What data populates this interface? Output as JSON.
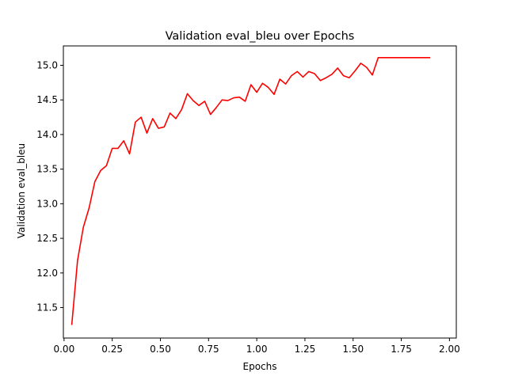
{
  "chart_data": {
    "type": "line",
    "title": "Validation eval_bleu over Epochs",
    "xlabel": "Epochs",
    "ylabel": "Validation eval_bleu",
    "xlim": [
      -0.0035,
      2.0355
    ],
    "ylim": [
      11.06,
      15.28
    ],
    "xticks": [
      0.0,
      0.25,
      0.5,
      0.75,
      1.0,
      1.25,
      1.5,
      1.75,
      2.0
    ],
    "xtick_labels": [
      "0.00",
      "0.25",
      "0.50",
      "0.75",
      "1.00",
      "1.25",
      "1.50",
      "1.75",
      "2.00"
    ],
    "yticks": [
      11.5,
      12.0,
      12.5,
      13.0,
      13.5,
      14.0,
      14.5,
      15.0
    ],
    "ytick_labels": [
      "11.5",
      "12.0",
      "12.5",
      "13.0",
      "13.5",
      "14.0",
      "14.5",
      "15.0"
    ],
    "grid": false,
    "line_color": "#ff0000",
    "series": [
      {
        "x": [
          0.04,
          0.07,
          0.1,
          0.13,
          0.16,
          0.19,
          0.22,
          0.25,
          0.28,
          0.31,
          0.34,
          0.37,
          0.4,
          0.43,
          0.46,
          0.49,
          0.52,
          0.55,
          0.58,
          0.61,
          0.64,
          0.67,
          0.7,
          0.73,
          0.76,
          0.79,
          0.82,
          0.85,
          0.88,
          0.91,
          0.94,
          0.97,
          1.0,
          1.03,
          1.06,
          1.09,
          1.12,
          1.15,
          1.18,
          1.21,
          1.24,
          1.27,
          1.3,
          1.33,
          1.36,
          1.39,
          1.42,
          1.45,
          1.48,
          1.51,
          1.54,
          1.57,
          1.6,
          1.63,
          1.66,
          1.69,
          1.72,
          1.75,
          1.78,
          1.81,
          1.84,
          1.87,
          1.9
        ],
        "y": [
          11.25,
          12.18,
          12.66,
          12.94,
          13.32,
          13.48,
          13.55,
          13.8,
          13.8,
          13.91,
          13.72,
          14.18,
          14.25,
          14.02,
          14.23,
          14.09,
          14.11,
          14.31,
          14.23,
          14.36,
          14.59,
          14.49,
          14.42,
          14.48,
          14.29,
          14.39,
          14.5,
          14.49,
          14.53,
          14.54,
          14.48,
          14.72,
          14.61,
          14.74,
          14.68,
          14.58,
          14.8,
          14.73,
          14.85,
          14.91,
          14.83,
          14.91,
          14.88,
          14.78,
          14.82,
          14.87,
          14.96,
          14.85,
          14.82,
          14.92,
          15.03,
          14.97,
          14.86,
          15.11,
          15.11,
          15.11,
          15.11,
          15.11,
          15.11,
          15.11,
          15.11,
          15.11,
          15.11
        ]
      }
    ]
  }
}
